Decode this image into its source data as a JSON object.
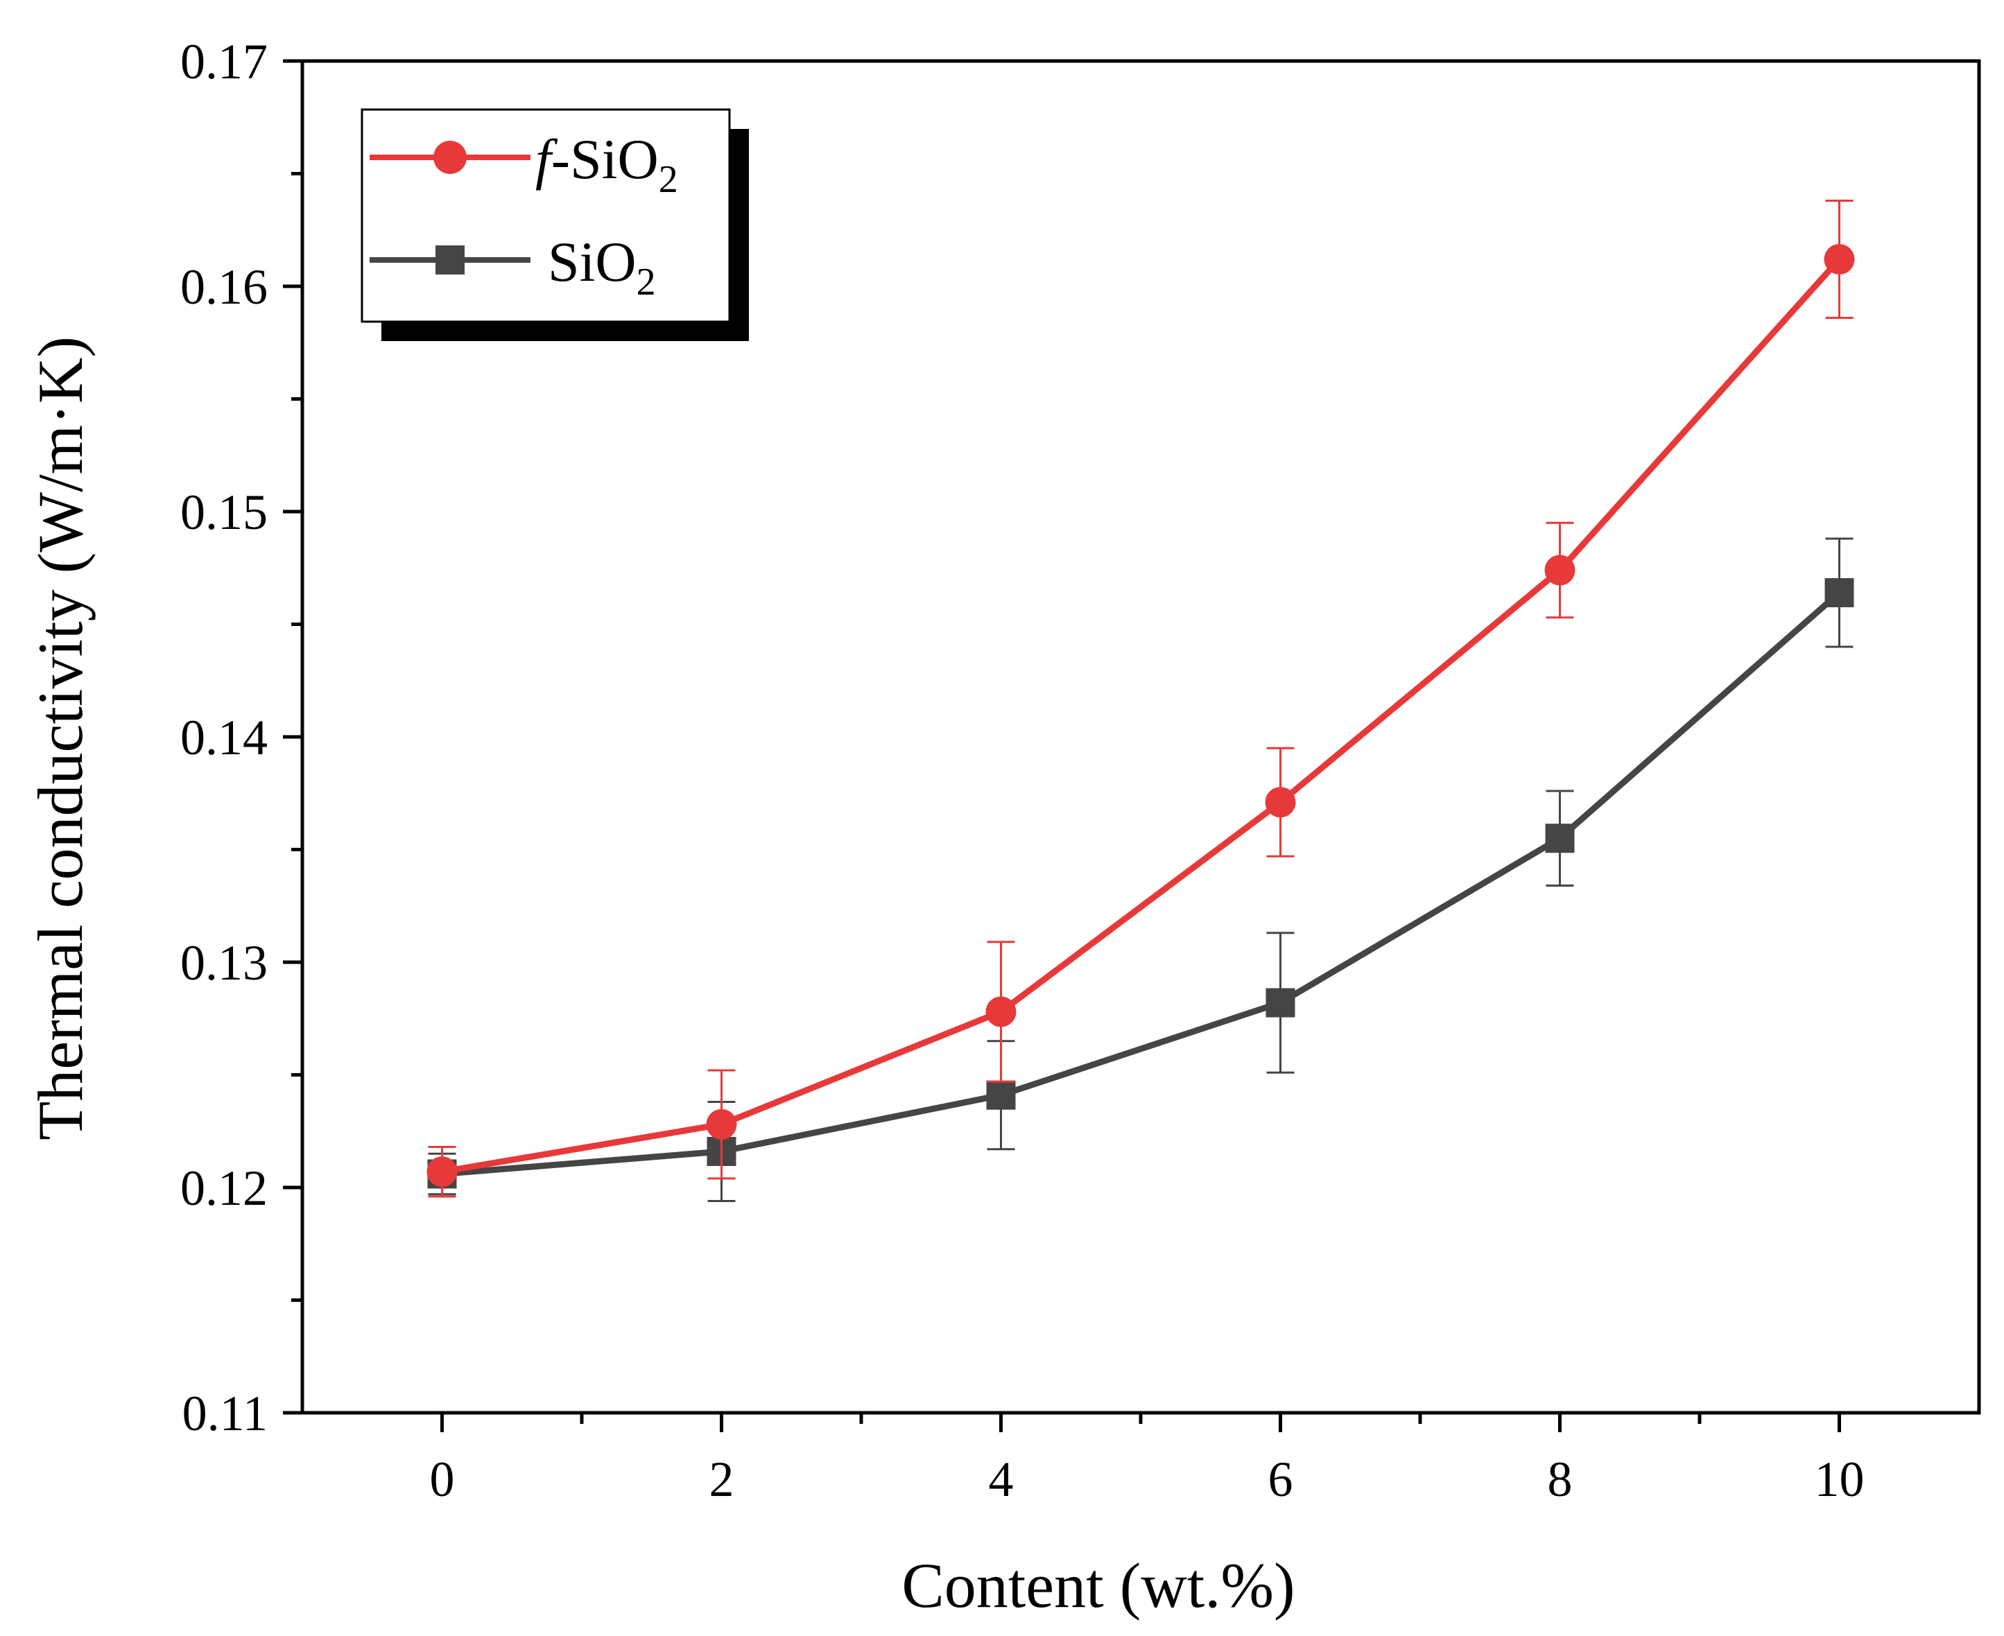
{
  "chart_data": {
    "type": "line",
    "title": "",
    "xlabel": "Content (wt.%)",
    "ylabel": "Thermal conductivity (W/m·K)",
    "xlim": [
      -1,
      11
    ],
    "ylim": [
      0.11,
      0.17
    ],
    "x_ticks": [
      0,
      2,
      4,
      6,
      8,
      10
    ],
    "x_tick_labels": [
      "0",
      "2",
      "4",
      "6",
      "8",
      "10"
    ],
    "x_minor_ticks": [
      1,
      3,
      5,
      7,
      9
    ],
    "y_ticks": [
      0.11,
      0.12,
      0.13,
      0.14,
      0.15,
      0.16,
      0.17
    ],
    "y_tick_labels": [
      "0.11",
      "0.12",
      "0.13",
      "0.14",
      "0.15",
      "0.16",
      "0.17"
    ],
    "y_minor_ticks": [
      0.115,
      0.125,
      0.135,
      0.145,
      0.155,
      0.165
    ],
    "grid": false,
    "legend_position": "top-left",
    "x": [
      0,
      2,
      4,
      6,
      8,
      10
    ],
    "series": [
      {
        "name_prefix": "f",
        "name_main": "-SiO",
        "name_sub": "2",
        "marker": "circle",
        "color": "#e8393a",
        "values": [
          0.1207,
          0.1228,
          0.1278,
          0.1371,
          0.1474,
          0.1612
        ],
        "errors": [
          0.0011,
          0.0024,
          0.0031,
          0.0024,
          0.0021,
          0.0026
        ]
      },
      {
        "name_prefix": "",
        "name_main": "SiO",
        "name_sub": "2",
        "marker": "square",
        "color": "#454545",
        "values": [
          0.1206,
          0.1216,
          0.1241,
          0.1282,
          0.1355,
          0.1464
        ],
        "errors": [
          0.0009,
          0.0022,
          0.0024,
          0.0031,
          0.0021,
          0.0024
        ]
      }
    ]
  }
}
